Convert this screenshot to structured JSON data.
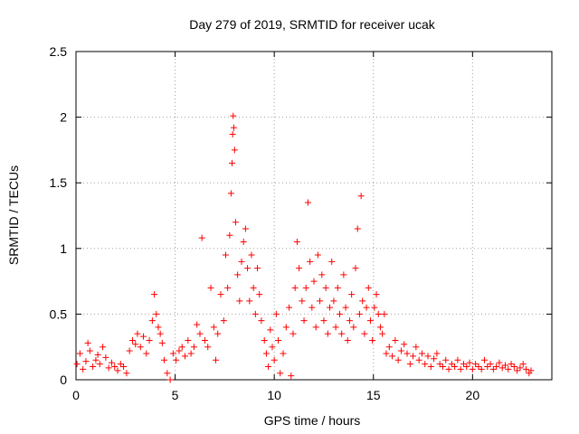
{
  "chart_data": {
    "type": "scatter",
    "title": "Day 279 of 2019, SRMTID for receiver ucak",
    "xlabel": "GPS time / hours",
    "ylabel": "SRMTID / TECUs",
    "xlim": [
      0,
      24
    ],
    "ylim": [
      0,
      2.5
    ],
    "xticks": [
      0,
      5,
      10,
      15,
      20
    ],
    "xtick_labels": [
      "0",
      "5",
      "10",
      "15",
      "20"
    ],
    "yticks": [
      0,
      0.5,
      1,
      1.5,
      2,
      2.5
    ],
    "ytick_labels": [
      "0",
      "0.5",
      "1",
      "1.5",
      "2",
      "2.5"
    ],
    "grid": true,
    "marker": "+",
    "marker_color": "#ff0000",
    "series": [
      {
        "name": "SRMTID",
        "points": [
          [
            0.05,
            0.12
          ],
          [
            0.2,
            0.2
          ],
          [
            0.35,
            0.08
          ],
          [
            0.5,
            0.14
          ],
          [
            0.6,
            0.28
          ],
          [
            0.7,
            0.22
          ],
          [
            0.85,
            0.1
          ],
          [
            1.0,
            0.15
          ],
          [
            1.1,
            0.19
          ],
          [
            1.2,
            0.12
          ],
          [
            1.35,
            0.25
          ],
          [
            1.5,
            0.17
          ],
          [
            1.65,
            0.09
          ],
          [
            1.8,
            0.13
          ],
          [
            1.95,
            0.1
          ],
          [
            2.1,
            0.07
          ],
          [
            2.25,
            0.12
          ],
          [
            2.4,
            0.1
          ],
          [
            2.55,
            0.05
          ],
          [
            2.7,
            0.22
          ],
          [
            2.85,
            0.3
          ],
          [
            3.0,
            0.27
          ],
          [
            3.1,
            0.35
          ],
          [
            3.25,
            0.25
          ],
          [
            3.4,
            0.33
          ],
          [
            3.55,
            0.2
          ],
          [
            3.7,
            0.3
          ],
          [
            3.85,
            0.45
          ],
          [
            3.95,
            0.65
          ],
          [
            4.05,
            0.5
          ],
          [
            4.15,
            0.4
          ],
          [
            4.25,
            0.35
          ],
          [
            4.35,
            0.28
          ],
          [
            4.45,
            0.15
          ],
          [
            4.6,
            0.05
          ],
          [
            4.75,
            0.0
          ],
          [
            4.9,
            0.2
          ],
          [
            5.05,
            0.15
          ],
          [
            5.2,
            0.22
          ],
          [
            5.35,
            0.25
          ],
          [
            5.5,
            0.18
          ],
          [
            5.65,
            0.3
          ],
          [
            5.8,
            0.2
          ],
          [
            5.95,
            0.25
          ],
          [
            6.1,
            0.42
          ],
          [
            6.25,
            0.35
          ],
          [
            6.35,
            1.08
          ],
          [
            6.5,
            0.3
          ],
          [
            6.65,
            0.25
          ],
          [
            6.8,
            0.7
          ],
          [
            6.95,
            0.4
          ],
          [
            7.05,
            0.15
          ],
          [
            7.15,
            0.35
          ],
          [
            7.3,
            0.65
          ],
          [
            7.45,
            0.45
          ],
          [
            7.55,
            0.95
          ],
          [
            7.65,
            0.7
          ],
          [
            7.75,
            1.1
          ],
          [
            7.82,
            1.42
          ],
          [
            7.87,
            1.65
          ],
          [
            7.9,
            1.87
          ],
          [
            7.93,
            2.01
          ],
          [
            7.96,
            1.92
          ],
          [
            8.0,
            1.75
          ],
          [
            8.05,
            1.2
          ],
          [
            8.15,
            0.8
          ],
          [
            8.25,
            0.6
          ],
          [
            8.35,
            0.9
          ],
          [
            8.45,
            1.05
          ],
          [
            8.55,
            1.15
          ],
          [
            8.65,
            0.85
          ],
          [
            8.75,
            0.6
          ],
          [
            8.85,
            0.95
          ],
          [
            8.95,
            0.7
          ],
          [
            9.05,
            0.5
          ],
          [
            9.15,
            0.85
          ],
          [
            9.25,
            0.65
          ],
          [
            9.35,
            0.45
          ],
          [
            9.5,
            0.3
          ],
          [
            9.6,
            0.2
          ],
          [
            9.7,
            0.1
          ],
          [
            9.8,
            0.38
          ],
          [
            9.9,
            0.25
          ],
          [
            10.0,
            0.15
          ],
          [
            10.1,
            0.5
          ],
          [
            10.2,
            0.3
          ],
          [
            10.3,
            0.05
          ],
          [
            10.45,
            0.2
          ],
          [
            10.6,
            0.4
          ],
          [
            10.75,
            0.55
          ],
          [
            10.85,
            0.03
          ],
          [
            10.95,
            0.35
          ],
          [
            11.05,
            0.7
          ],
          [
            11.15,
            1.05
          ],
          [
            11.25,
            0.85
          ],
          [
            11.4,
            0.6
          ],
          [
            11.5,
            0.45
          ],
          [
            11.6,
            0.7
          ],
          [
            11.7,
            1.35
          ],
          [
            11.8,
            0.9
          ],
          [
            11.9,
            0.55
          ],
          [
            12.0,
            0.75
          ],
          [
            12.1,
            0.4
          ],
          [
            12.2,
            0.95
          ],
          [
            12.3,
            0.6
          ],
          [
            12.4,
            0.8
          ],
          [
            12.5,
            0.45
          ],
          [
            12.6,
            0.7
          ],
          [
            12.7,
            0.35
          ],
          [
            12.8,
            0.55
          ],
          [
            12.9,
            0.9
          ],
          [
            13.0,
            0.6
          ],
          [
            13.1,
            0.4
          ],
          [
            13.2,
            0.7
          ],
          [
            13.3,
            0.5
          ],
          [
            13.4,
            0.35
          ],
          [
            13.5,
            0.8
          ],
          [
            13.6,
            0.55
          ],
          [
            13.7,
            0.3
          ],
          [
            13.8,
            0.45
          ],
          [
            13.9,
            0.65
          ],
          [
            14.0,
            0.4
          ],
          [
            14.1,
            0.85
          ],
          [
            14.2,
            1.15
          ],
          [
            14.3,
            0.5
          ],
          [
            14.38,
            1.4
          ],
          [
            14.45,
            0.6
          ],
          [
            14.55,
            0.35
          ],
          [
            14.65,
            0.55
          ],
          [
            14.75,
            0.7
          ],
          [
            14.85,
            0.45
          ],
          [
            14.95,
            0.3
          ],
          [
            15.05,
            0.55
          ],
          [
            15.15,
            0.65
          ],
          [
            15.25,
            0.5
          ],
          [
            15.35,
            0.4
          ],
          [
            15.45,
            0.35
          ],
          [
            15.55,
            0.5
          ],
          [
            15.65,
            0.2
          ],
          [
            15.8,
            0.25
          ],
          [
            15.95,
            0.18
          ],
          [
            16.1,
            0.3
          ],
          [
            16.25,
            0.15
          ],
          [
            16.4,
            0.22
          ],
          [
            16.55,
            0.27
          ],
          [
            16.7,
            0.2
          ],
          [
            16.85,
            0.12
          ],
          [
            17.0,
            0.18
          ],
          [
            17.15,
            0.25
          ],
          [
            17.3,
            0.15
          ],
          [
            17.45,
            0.2
          ],
          [
            17.6,
            0.12
          ],
          [
            17.75,
            0.18
          ],
          [
            17.9,
            0.1
          ],
          [
            18.05,
            0.16
          ],
          [
            18.2,
            0.2
          ],
          [
            18.35,
            0.12
          ],
          [
            18.5,
            0.1
          ],
          [
            18.65,
            0.15
          ],
          [
            18.8,
            0.08
          ],
          [
            18.95,
            0.12
          ],
          [
            19.1,
            0.1
          ],
          [
            19.25,
            0.15
          ],
          [
            19.4,
            0.08
          ],
          [
            19.55,
            0.12
          ],
          [
            19.7,
            0.1
          ],
          [
            19.85,
            0.13
          ],
          [
            20.0,
            0.08
          ],
          [
            20.15,
            0.12
          ],
          [
            20.3,
            0.1
          ],
          [
            20.45,
            0.08
          ],
          [
            20.6,
            0.15
          ],
          [
            20.75,
            0.1
          ],
          [
            20.9,
            0.12
          ],
          [
            21.05,
            0.08
          ],
          [
            21.2,
            0.1
          ],
          [
            21.35,
            0.13
          ],
          [
            21.5,
            0.09
          ],
          [
            21.65,
            0.11
          ],
          [
            21.8,
            0.08
          ],
          [
            21.95,
            0.12
          ],
          [
            22.1,
            0.1
          ],
          [
            22.25,
            0.07
          ],
          [
            22.4,
            0.09
          ],
          [
            22.55,
            0.12
          ],
          [
            22.7,
            0.08
          ],
          [
            22.85,
            0.05
          ],
          [
            22.95,
            0.07
          ]
        ]
      }
    ]
  }
}
